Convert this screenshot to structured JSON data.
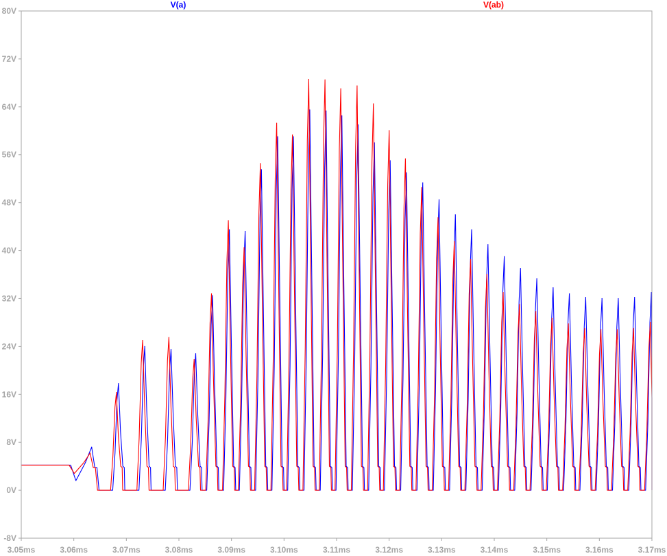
{
  "chart_data": {
    "type": "line",
    "xlabel": "",
    "ylabel": "",
    "xlim": [
      3.05,
      3.17
    ],
    "ylim": [
      -8,
      80
    ],
    "x_unit": "ms",
    "y_unit": "V",
    "x_ticks": [
      "3.05ms",
      "3.06ms",
      "3.07ms",
      "3.08ms",
      "3.09ms",
      "3.10ms",
      "3.11ms",
      "3.12ms",
      "3.13ms",
      "3.14ms",
      "3.15ms",
      "3.16ms",
      "3.17ms"
    ],
    "y_ticks": [
      "-8V",
      "0V",
      "8V",
      "16V",
      "24V",
      "32V",
      "40V",
      "48V",
      "56V",
      "64V",
      "72V",
      "80V"
    ],
    "grid": false,
    "legend": "top",
    "series": [
      {
        "name": "V(a)",
        "color": "#0000ff",
        "pulses": [
          {
            "t": 3.0634,
            "v": 7.2
          },
          {
            "t": 3.0685,
            "v": 17.8
          },
          {
            "t": 3.0735,
            "v": 24.0
          },
          {
            "t": 3.0785,
            "v": 23.5
          },
          {
            "t": 3.0832,
            "v": 22.8
          },
          {
            "t": 3.0864,
            "v": 32.5
          },
          {
            "t": 3.0896,
            "v": 43.5
          },
          {
            "t": 3.0926,
            "v": 43.2
          },
          {
            "t": 3.0957,
            "v": 53.5
          },
          {
            "t": 3.0988,
            "v": 59.0
          },
          {
            "t": 3.1018,
            "v": 59.0
          },
          {
            "t": 3.1049,
            "v": 63.5
          },
          {
            "t": 3.108,
            "v": 63.3
          },
          {
            "t": 3.111,
            "v": 62.5
          },
          {
            "t": 3.1141,
            "v": 61.0
          },
          {
            "t": 3.1172,
            "v": 58.0
          },
          {
            "t": 3.1202,
            "v": 55.0
          },
          {
            "t": 3.1233,
            "v": 53.0
          },
          {
            "t": 3.1264,
            "v": 51.3
          },
          {
            "t": 3.1295,
            "v": 48.5
          },
          {
            "t": 3.1326,
            "v": 46.0
          },
          {
            "t": 3.1357,
            "v": 43.5
          },
          {
            "t": 3.1388,
            "v": 41.0
          },
          {
            "t": 3.1419,
            "v": 39.0
          },
          {
            "t": 3.145,
            "v": 37.0
          },
          {
            "t": 3.1481,
            "v": 35.3
          },
          {
            "t": 3.1512,
            "v": 33.8
          },
          {
            "t": 3.1543,
            "v": 32.8
          },
          {
            "t": 3.1574,
            "v": 32.2
          },
          {
            "t": 3.1605,
            "v": 32.0
          },
          {
            "t": 3.1636,
            "v": 32.0
          },
          {
            "t": 3.1667,
            "v": 32.2
          },
          {
            "t": 3.1699,
            "v": 33.0
          }
        ]
      },
      {
        "name": "V(ab)",
        "color": "#ff0000",
        "pulses": [
          {
            "t": 3.0631,
            "v": 6.2
          },
          {
            "t": 3.0681,
            "v": 16.3
          },
          {
            "t": 3.0731,
            "v": 25.0
          },
          {
            "t": 3.0781,
            "v": 25.5
          },
          {
            "t": 3.0829,
            "v": 21.8
          },
          {
            "t": 3.0862,
            "v": 32.8
          },
          {
            "t": 3.0894,
            "v": 45.0
          },
          {
            "t": 3.0924,
            "v": 40.5
          },
          {
            "t": 3.0955,
            "v": 54.5
          },
          {
            "t": 3.0986,
            "v": 61.3
          },
          {
            "t": 3.1016,
            "v": 59.3
          },
          {
            "t": 3.1047,
            "v": 68.6
          },
          {
            "t": 3.1078,
            "v": 68.5
          },
          {
            "t": 3.1108,
            "v": 67.0
          },
          {
            "t": 3.1139,
            "v": 67.5
          },
          {
            "t": 3.117,
            "v": 64.5
          },
          {
            "t": 3.12,
            "v": 60.0
          },
          {
            "t": 3.1231,
            "v": 55.3
          },
          {
            "t": 3.1262,
            "v": 50.5
          },
          {
            "t": 3.1293,
            "v": 45.5
          },
          {
            "t": 3.1324,
            "v": 41.5
          },
          {
            "t": 3.1355,
            "v": 38.5
          },
          {
            "t": 3.1386,
            "v": 36.0
          },
          {
            "t": 3.1417,
            "v": 33.0
          },
          {
            "t": 3.1448,
            "v": 31.0
          },
          {
            "t": 3.1479,
            "v": 29.8
          },
          {
            "t": 3.151,
            "v": 28.7
          },
          {
            "t": 3.1541,
            "v": 27.8
          },
          {
            "t": 3.1572,
            "v": 27.0
          },
          {
            "t": 3.1603,
            "v": 26.8
          },
          {
            "t": 3.1634,
            "v": 26.8
          },
          {
            "t": 3.1665,
            "v": 27.0
          },
          {
            "t": 3.1697,
            "v": 28.0
          }
        ]
      }
    ]
  }
}
